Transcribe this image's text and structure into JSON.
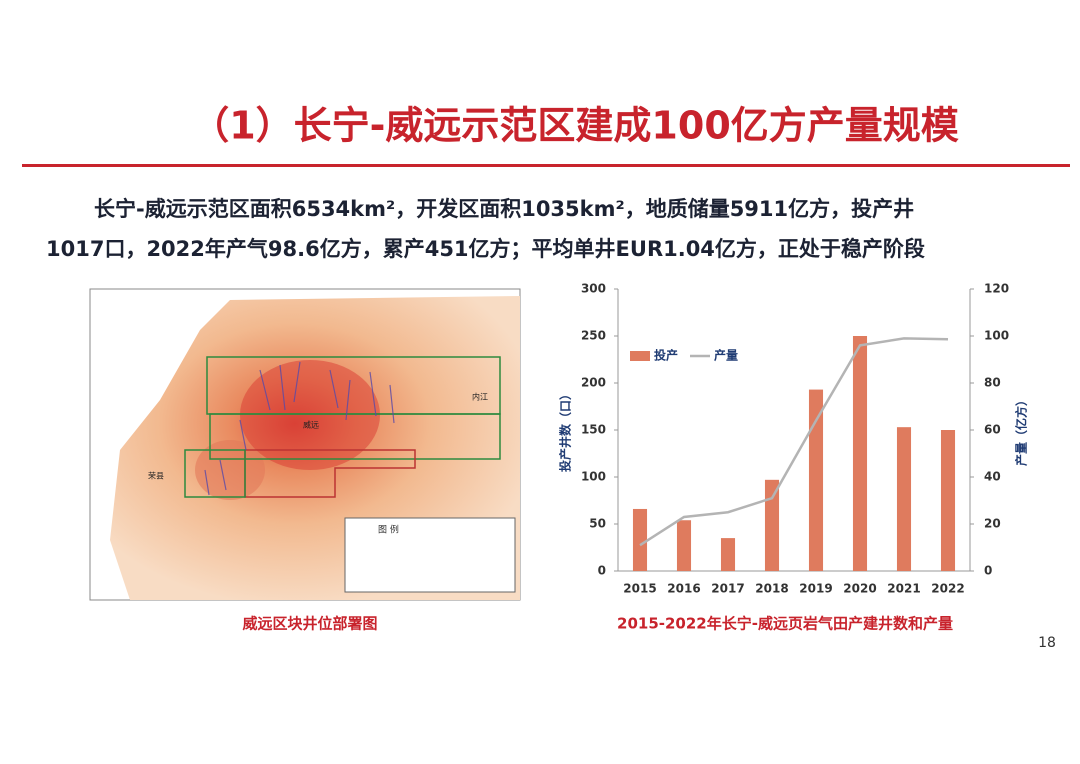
{
  "title": "（1）长宁-威远示范区建成100亿方产量规模",
  "body": [
    "长宁-威远示范区面积6534km²，开发区面积1035km²，地质储量5911亿方，投产井",
    "1017口，2022年产气98.6亿方，累产451亿方；平均单井EUR1.04亿方，正处于稳产阶段"
  ],
  "map": {
    "caption": "威远区块井位部署图",
    "labels": [
      "威远",
      "内江",
      "荣县",
      "图 例"
    ]
  },
  "page_number": "18",
  "chart_data": {
    "type": "bar",
    "title": "2015-2022年长宁-威远页岩气田产建井数和产量",
    "categories": [
      "2015",
      "2016",
      "2017",
      "2018",
      "2019",
      "2020",
      "2021",
      "2022"
    ],
    "series": [
      {
        "name": "投产",
        "color": "#df7b5e",
        "values": [
          66,
          54,
          35,
          97,
          193,
          250,
          153,
          150
        ]
      },
      {
        "name": "产量",
        "color": "#b4b4b4",
        "type": "line",
        "axis": "y2",
        "values": [
          11,
          23,
          25,
          31,
          64,
          96,
          99,
          98.6
        ]
      }
    ],
    "ylabel": "投产井数（口）",
    "y2label": "产量（亿方）",
    "ylim": [
      0,
      300
    ],
    "yticks": [
      0,
      50,
      100,
      150,
      200,
      250,
      300
    ],
    "y2lim": [
      0,
      120
    ],
    "y2ticks": [
      0,
      20,
      40,
      60,
      80,
      100,
      120
    ],
    "legend": "upper left",
    "grid": false
  }
}
